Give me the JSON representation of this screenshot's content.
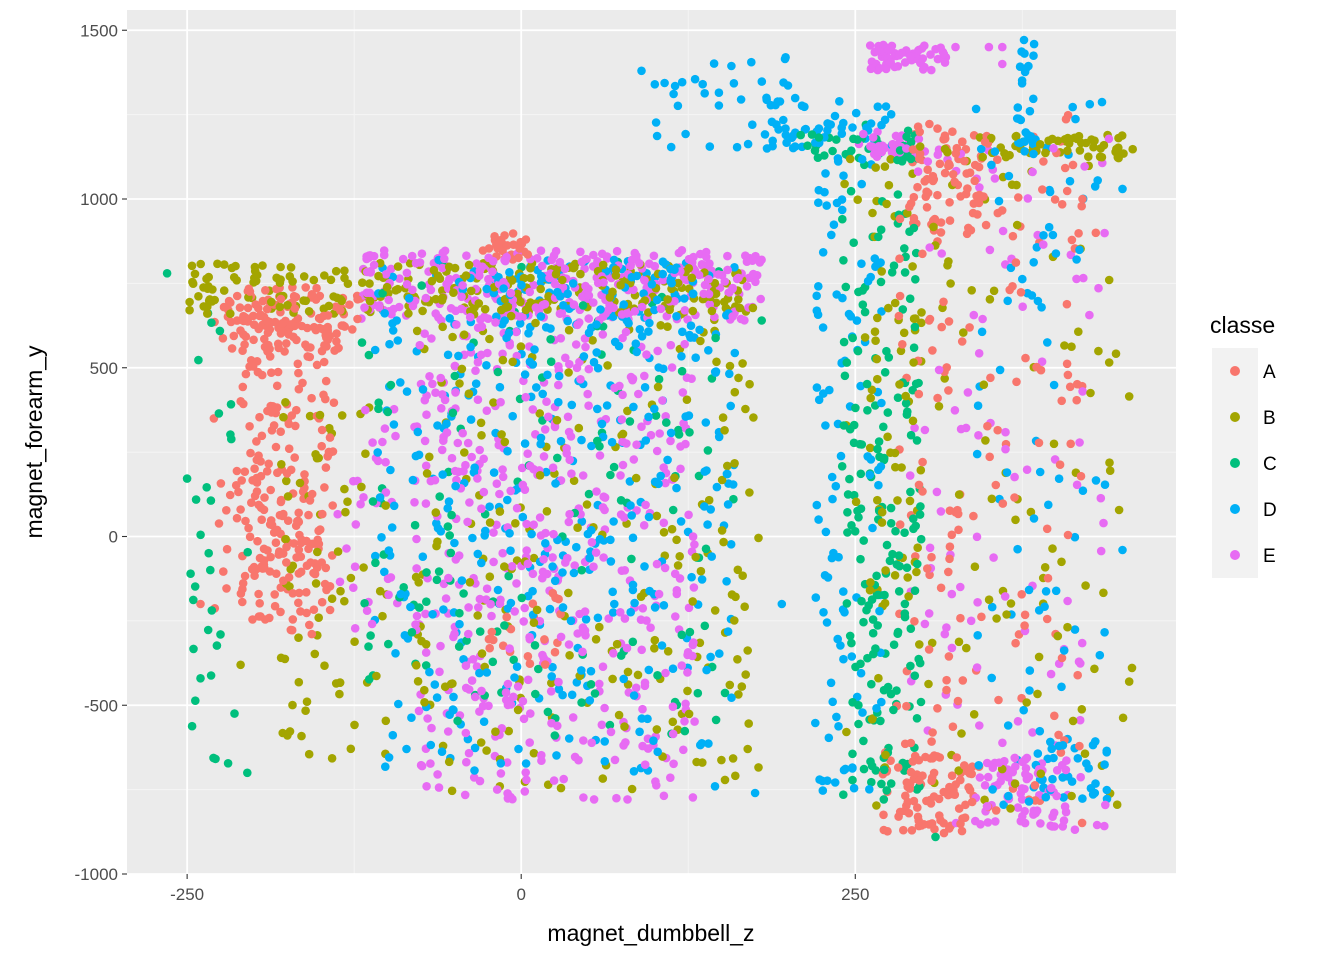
{
  "chart_data": {
    "type": "scatter",
    "xlabel": "magnet_dumbbell_z",
    "ylabel": "magnet_forearm_y",
    "xlim": [
      -295,
      490
    ],
    "ylim": [
      -1000,
      1560
    ],
    "x_ticks": [
      -250,
      0,
      250
    ],
    "x_tick_labels": [
      "-250",
      "0",
      "250"
    ],
    "y_ticks": [
      -1000,
      -500,
      0,
      500,
      1000,
      1500
    ],
    "y_tick_labels": [
      "-1000",
      "-500",
      "0",
      "500",
      "1000",
      "1500"
    ],
    "grid": true,
    "legend": {
      "title": "classe",
      "placement": "right"
    },
    "series": [
      {
        "name": "A",
        "color": "#F8766D",
        "clusters": [
          {
            "x": [
              -210,
              -140
            ],
            "y": [
              -250,
              750
            ],
            "n": 210
          },
          {
            "x": [
              -230,
              -120
            ],
            "y": [
              550,
              720
            ],
            "n": 90
          },
          {
            "x": [
              -230,
              -150
            ],
            "y": [
              -300,
              200
            ],
            "n": 60
          },
          {
            "x": [
              -30,
              5
            ],
            "y": [
              820,
              900
            ],
            "n": 25
          },
          {
            "x": [
              -30,
              30
            ],
            "y": [
              -400,
              -150
            ],
            "n": 20
          },
          {
            "x": [
              280,
              420
            ],
            "y": [
              -850,
              1250
            ],
            "n": 170
          },
          {
            "x": [
              290,
              350
            ],
            "y": [
              900,
              1200
            ],
            "n": 70
          },
          {
            "x": [
              270,
              340
            ],
            "y": [
              -880,
              -640
            ],
            "n": 80
          }
        ],
        "points": [
          [
            -230,
            350
          ],
          [
            -210,
            80
          ],
          [
            -240,
            -200
          ],
          [
            420,
            1000
          ],
          [
            430,
            900
          ]
        ]
      },
      {
        "name": "B",
        "color": "#A3A500",
        "clusters": [
          {
            "x": [
              -250,
              170
            ],
            "y": [
              660,
              810
            ],
            "n": 260
          },
          {
            "x": [
              -180,
              -100
            ],
            "y": [
              -700,
              400
            ],
            "n": 70
          },
          {
            "x": [
              -80,
              180
            ],
            "y": [
              -760,
              700
            ],
            "n": 220
          },
          {
            "x": [
              240,
              460
            ],
            "y": [
              -820,
              1180
            ],
            "n": 130
          },
          {
            "x": [
              340,
              460
            ],
            "y": [
              1120,
              1190
            ],
            "n": 55
          },
          {
            "x": [
              260,
              300
            ],
            "y": [
              -300,
              1000
            ],
            "n": 40
          }
        ],
        "points": [
          [
            455,
            415
          ],
          [
            455,
            -430
          ],
          [
            440,
            760
          ],
          [
            -210,
            -380
          ]
        ]
      },
      {
        "name": "C",
        "color": "#00BF7D",
        "clusters": [
          {
            "x": [
              -250,
              -200
            ],
            "y": [
              -700,
              750
            ],
            "n": 30
          },
          {
            "x": [
              -120,
              160
            ],
            "y": [
              -600,
              830
            ],
            "n": 140
          },
          {
            "x": [
              240,
              300
            ],
            "y": [
              -800,
              1220
            ],
            "n": 200
          },
          {
            "x": [
              200,
              300
            ],
            "y": [
              1100,
              1200
            ],
            "n": 30
          }
        ],
        "points": [
          [
            -265,
            780
          ],
          [
            -205,
            -700
          ],
          [
            -240,
            -420
          ],
          [
            -225,
            -290
          ],
          [
            310,
            -890
          ],
          [
            180,
            640
          ]
        ]
      },
      {
        "name": "D",
        "color": "#00B0F6",
        "clusters": [
          {
            "x": [
              -110,
              160
            ],
            "y": [
              -700,
              820
            ],
            "n": 380
          },
          {
            "x": [
              -20,
              130
            ],
            "y": [
              600,
              820
            ],
            "n": 80
          },
          {
            "x": [
              100,
              200
            ],
            "y": [
              1150,
              1420
            ],
            "n": 35
          },
          {
            "x": [
              180,
              280
            ],
            "y": [
              1150,
              1300
            ],
            "n": 45
          },
          {
            "x": [
              220,
              270
            ],
            "y": [
              -780,
              1220
            ],
            "n": 110
          },
          {
            "x": [
              370,
              385
            ],
            "y": [
              1100,
              1480
            ],
            "n": 30
          },
          {
            "x": [
              340,
              440
            ],
            "y": [
              -820,
              1300
            ],
            "n": 80
          },
          {
            "x": [
              380,
              440
            ],
            "y": [
              -780,
              -600
            ],
            "n": 35
          }
        ],
        "points": [
          [
            195,
            -200
          ],
          [
            175,
            -760
          ],
          [
            145,
            -740
          ],
          [
            450,
            -40
          ],
          [
            450,
            1030
          ],
          [
            100,
            1340
          ],
          [
            90,
            1380
          ]
        ]
      },
      {
        "name": "E",
        "color": "#E76BF3",
        "clusters": [
          {
            "x": [
              -120,
              180
            ],
            "y": [
              640,
              850
            ],
            "n": 330
          },
          {
            "x": [
              -80,
              130
            ],
            "y": [
              -780,
              660
            ],
            "n": 460
          },
          {
            "x": [
              -140,
              -90
            ],
            "y": [
              -300,
              400
            ],
            "n": 30
          },
          {
            "x": [
              260,
              320
            ],
            "y": [
              1380,
              1460
            ],
            "n": 60
          },
          {
            "x": [
              290,
              440
            ],
            "y": [
              -870,
              1200
            ],
            "n": 110
          },
          {
            "x": [
              340,
              410
            ],
            "y": [
              -860,
              -650
            ],
            "n": 70
          },
          {
            "x": [
              250,
              300
            ],
            "y": [
              1120,
              1200
            ],
            "n": 30
          }
        ],
        "points": [
          [
            350,
            1450
          ],
          [
            360,
            1450
          ],
          [
            360,
            1400
          ],
          [
            325,
            1450
          ]
        ]
      }
    ]
  }
}
